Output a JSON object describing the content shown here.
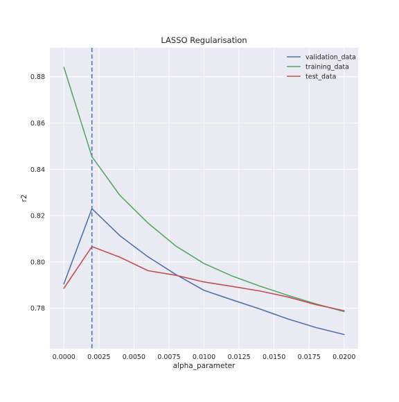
{
  "chart_data": {
    "type": "line",
    "title": "LASSO Regularisation",
    "xlabel": "alpha_parameter",
    "ylabel": "r2",
    "xlim": [
      -0.001,
      0.021
    ],
    "ylim": [
      0.7625,
      0.8925
    ],
    "x_ticks": [
      0.0,
      0.0025,
      0.005,
      0.0075,
      0.01,
      0.0125,
      0.015,
      0.0175,
      0.02
    ],
    "x_tick_labels": [
      "0.0000",
      "0.0025",
      "0.0050",
      "0.0075",
      "0.0100",
      "0.0125",
      "0.0150",
      "0.0175",
      "0.0200"
    ],
    "y_ticks": [
      0.78,
      0.8,
      0.82,
      0.84,
      0.86,
      0.88
    ],
    "y_tick_labels": [
      "0.78",
      "0.80",
      "0.82",
      "0.84",
      "0.86",
      "0.88"
    ],
    "grid": true,
    "legend_position": "top-right",
    "x": [
      0.0,
      0.002,
      0.004,
      0.006,
      0.008,
      0.01,
      0.012,
      0.014,
      0.016,
      0.018,
      0.02
    ],
    "series": [
      {
        "name": "validation_data",
        "color": "#4c72b0",
        "values": [
          0.7905,
          0.823,
          0.8113,
          0.8022,
          0.7945,
          0.7877,
          0.7836,
          0.7796,
          0.7753,
          0.7716,
          0.7686
        ]
      },
      {
        "name": "training_data",
        "color": "#55a868",
        "values": [
          0.8841,
          0.8455,
          0.8287,
          0.8168,
          0.8068,
          0.7993,
          0.7939,
          0.7895,
          0.7855,
          0.7818,
          0.7785
        ]
      },
      {
        "name": "test_data",
        "color": "#c44e52",
        "values": [
          0.7886,
          0.8066,
          0.802,
          0.7962,
          0.7942,
          0.7913,
          0.7894,
          0.7874,
          0.7848,
          0.7815,
          0.7789
        ]
      }
    ],
    "vline": {
      "x": 0.002,
      "color": "#4c72b0",
      "style": "dashed"
    }
  },
  "colors": {
    "axes_background": "#eaeaf2",
    "grid": "#ffffff",
    "text": "#262626"
  }
}
